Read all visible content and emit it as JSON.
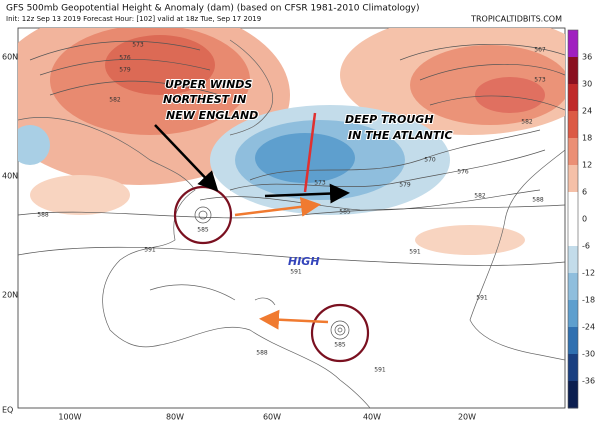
{
  "header": {
    "title": "GFS 500mb Geopotential Height & Anomaly (dam) (based on CFSR 1981-2010 Climatology)",
    "info": "Init: 12z Sep 13 2019   Forecast Hour: [102]   valid at 18z Tue, Sep 17 2019",
    "source": "TROPICALTIDBITS.COM"
  },
  "annotations": [
    "UPPER WINDS",
    "NORTHEST IN",
    "NEW ENGLAND",
    "DEEP TROUGH",
    "IN THE ATLANTIC",
    "HIGH"
  ],
  "lat_labels": [
    "60N",
    "40N",
    "20N",
    "EQ"
  ],
  "lon_labels": [
    "100W",
    "80W",
    "60W",
    "40W",
    "20W"
  ],
  "colorbar": {
    "labels": [
      36,
      30,
      24,
      18,
      12,
      6,
      0,
      -6,
      -12,
      -18,
      -24,
      -30,
      -36
    ]
  },
  "contour_labels": [
    "573",
    "576",
    "579",
    "582",
    "585",
    "585",
    "588",
    "591",
    "591",
    "591",
    "588",
    "588",
    "585",
    "582",
    "579",
    "576",
    "573",
    "570",
    "567",
    "573",
    "582",
    "591",
    "591"
  ]
}
